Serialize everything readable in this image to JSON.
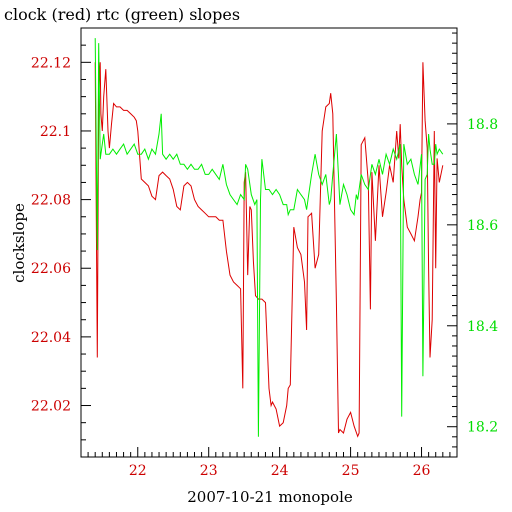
{
  "chart_data": {
    "type": "line",
    "title": "clock (red) rtc (green) slopes",
    "xlabel": "2007-10-21 monopole",
    "ylabel": "clockslope",
    "y2label": "",
    "xlim": [
      21.2,
      26.5
    ],
    "ylim": [
      22.005,
      22.13
    ],
    "y2lim": [
      18.14,
      18.99
    ],
    "x_ticks": [
      22,
      23,
      24,
      25,
      26
    ],
    "y_ticks": [
      22.02,
      22.04,
      22.06,
      22.08,
      22.1,
      22.12
    ],
    "y_tick_labels": [
      "22.02",
      "22.04",
      "22.06",
      "22.08",
      "22.1",
      "22.12"
    ],
    "y2_ticks": [
      18.2,
      18.4,
      18.6,
      18.8
    ],
    "y2_tick_labels": [
      "18.2",
      "18.4",
      "18.6",
      "18.8"
    ],
    "grid": false,
    "colors": {
      "clock": "#dd0000",
      "rtc": "#00ee00",
      "frame": "#000000"
    },
    "series": [
      {
        "name": "clock",
        "axis": "left",
        "x": [
          21.4,
          21.43,
          21.45,
          21.47,
          21.48,
          21.5,
          21.52,
          21.55,
          21.58,
          21.6,
          21.63,
          21.66,
          21.7,
          21.75,
          21.8,
          21.85,
          21.9,
          21.95,
          21.98,
          22.0,
          22.05,
          22.1,
          22.15,
          22.2,
          22.25,
          22.3,
          22.35,
          22.4,
          22.45,
          22.5,
          22.55,
          22.6,
          22.65,
          22.7,
          22.75,
          22.8,
          22.85,
          22.9,
          22.95,
          23.0,
          23.05,
          23.1,
          23.15,
          23.2,
          23.25,
          23.3,
          23.35,
          23.4,
          23.45,
          23.48,
          23.5,
          23.52,
          23.55,
          23.58,
          23.6,
          23.63,
          23.66,
          23.7,
          23.75,
          23.8,
          23.85,
          23.88,
          23.9,
          23.95,
          24.0,
          24.05,
          24.1,
          24.12,
          24.15,
          24.2,
          24.25,
          24.3,
          24.35,
          24.38,
          24.4,
          24.45,
          24.5,
          24.55,
          24.6,
          24.65,
          24.7,
          24.72,
          24.75,
          24.8,
          24.83,
          24.85,
          24.9,
          24.95,
          25.0,
          25.05,
          25.1,
          25.12,
          25.15,
          25.2,
          25.25,
          25.28,
          25.3,
          25.35,
          25.4,
          25.45,
          25.5,
          25.55,
          25.6,
          25.65,
          25.68,
          25.7,
          25.72,
          25.75,
          25.8,
          25.85,
          25.9,
          25.95,
          25.98,
          26.0,
          26.02,
          26.05,
          26.08,
          26.1,
          26.12,
          26.15,
          26.18,
          26.2,
          26.22,
          26.25,
          26.3
        ],
        "y": [
          22.12,
          22.034,
          22.11,
          22.12,
          22.105,
          22.1,
          22.11,
          22.118,
          22.1,
          22.095,
          22.102,
          22.108,
          22.107,
          22.107,
          22.106,
          22.106,
          22.105,
          22.104,
          22.103,
          22.1,
          22.086,
          22.085,
          22.084,
          22.081,
          22.08,
          22.087,
          22.088,
          22.087,
          22.086,
          22.083,
          22.078,
          22.077,
          22.084,
          22.085,
          22.084,
          22.08,
          22.078,
          22.077,
          22.076,
          22.075,
          22.075,
          22.075,
          22.074,
          22.074,
          22.065,
          22.058,
          22.056,
          22.055,
          22.054,
          22.025,
          22.085,
          22.088,
          22.058,
          22.078,
          22.077,
          22.062,
          22.052,
          22.051,
          22.051,
          22.05,
          22.025,
          22.02,
          22.021,
          22.019,
          22.014,
          22.015,
          22.02,
          22.025,
          22.026,
          22.072,
          22.066,
          22.064,
          22.056,
          22.042,
          22.075,
          22.076,
          22.06,
          22.064,
          22.1,
          22.107,
          22.108,
          22.111,
          22.105,
          22.05,
          22.012,
          22.013,
          22.012,
          22.016,
          22.018,
          22.014,
          22.011,
          22.012,
          22.096,
          22.098,
          22.085,
          22.048,
          22.088,
          22.068,
          22.09,
          22.075,
          22.082,
          22.09,
          22.085,
          22.1,
          22.092,
          22.102,
          22.09,
          22.08,
          22.072,
          22.07,
          22.068,
          22.075,
          22.08,
          22.082,
          22.12,
          22.103,
          22.095,
          22.06,
          22.034,
          22.045,
          22.1,
          22.06,
          22.092,
          22.085,
          22.09
        ]
      },
      {
        "name": "rtc",
        "axis": "right",
        "x": [
          21.4,
          21.43,
          21.45,
          21.47,
          21.5,
          21.52,
          21.55,
          21.6,
          21.65,
          21.7,
          21.75,
          21.8,
          21.85,
          21.9,
          21.95,
          22.0,
          22.05,
          22.1,
          22.15,
          22.2,
          22.25,
          22.3,
          22.33,
          22.35,
          22.4,
          22.45,
          22.5,
          22.55,
          22.6,
          22.65,
          22.7,
          22.75,
          22.8,
          22.85,
          22.9,
          22.95,
          23.0,
          23.05,
          23.1,
          23.15,
          23.2,
          23.25,
          23.3,
          23.35,
          23.4,
          23.45,
          23.5,
          23.52,
          23.55,
          23.6,
          23.65,
          23.68,
          23.7,
          23.73,
          23.75,
          23.8,
          23.85,
          23.9,
          23.95,
          24.0,
          24.05,
          24.1,
          24.12,
          24.15,
          24.2,
          24.25,
          24.3,
          24.35,
          24.38,
          24.4,
          24.45,
          24.5,
          24.55,
          24.6,
          24.65,
          24.7,
          24.72,
          24.75,
          24.8,
          24.85,
          24.9,
          24.95,
          25.0,
          25.05,
          25.08,
          25.1,
          25.15,
          25.2,
          25.25,
          25.3,
          25.35,
          25.4,
          25.45,
          25.5,
          25.55,
          25.6,
          25.65,
          25.7,
          25.72,
          25.75,
          25.8,
          25.85,
          25.9,
          25.95,
          26.0,
          26.02,
          26.05,
          26.08,
          26.1,
          26.12,
          26.15,
          26.18,
          26.2,
          26.22,
          26.25,
          26.3
        ],
        "y": [
          18.97,
          18.55,
          18.96,
          18.73,
          18.76,
          18.78,
          18.74,
          18.74,
          18.75,
          18.74,
          18.75,
          18.76,
          18.74,
          18.75,
          18.76,
          18.74,
          18.74,
          18.75,
          18.73,
          18.75,
          18.74,
          18.78,
          18.82,
          18.74,
          18.73,
          18.74,
          18.73,
          18.74,
          18.72,
          18.72,
          18.71,
          18.72,
          18.71,
          18.71,
          18.72,
          18.7,
          18.7,
          18.71,
          18.7,
          18.69,
          18.72,
          18.68,
          18.66,
          18.65,
          18.64,
          18.66,
          18.65,
          18.72,
          18.71,
          18.66,
          18.64,
          18.65,
          18.18,
          18.65,
          18.73,
          18.67,
          18.67,
          18.66,
          18.67,
          18.66,
          18.64,
          18.64,
          18.62,
          18.63,
          18.63,
          18.67,
          18.66,
          18.65,
          18.63,
          18.65,
          18.7,
          18.74,
          18.7,
          18.68,
          18.7,
          18.64,
          18.65,
          18.7,
          18.78,
          18.64,
          18.68,
          18.66,
          18.63,
          18.62,
          18.66,
          18.65,
          18.7,
          18.68,
          18.67,
          18.72,
          18.7,
          18.73,
          18.7,
          18.74,
          18.72,
          18.75,
          18.73,
          18.76,
          18.22,
          18.76,
          18.72,
          18.73,
          18.7,
          18.68,
          18.74,
          18.3,
          18.69,
          18.7,
          18.78,
          18.75,
          18.72,
          18.72,
          18.76,
          18.74,
          18.75,
          18.74
        ]
      }
    ]
  }
}
